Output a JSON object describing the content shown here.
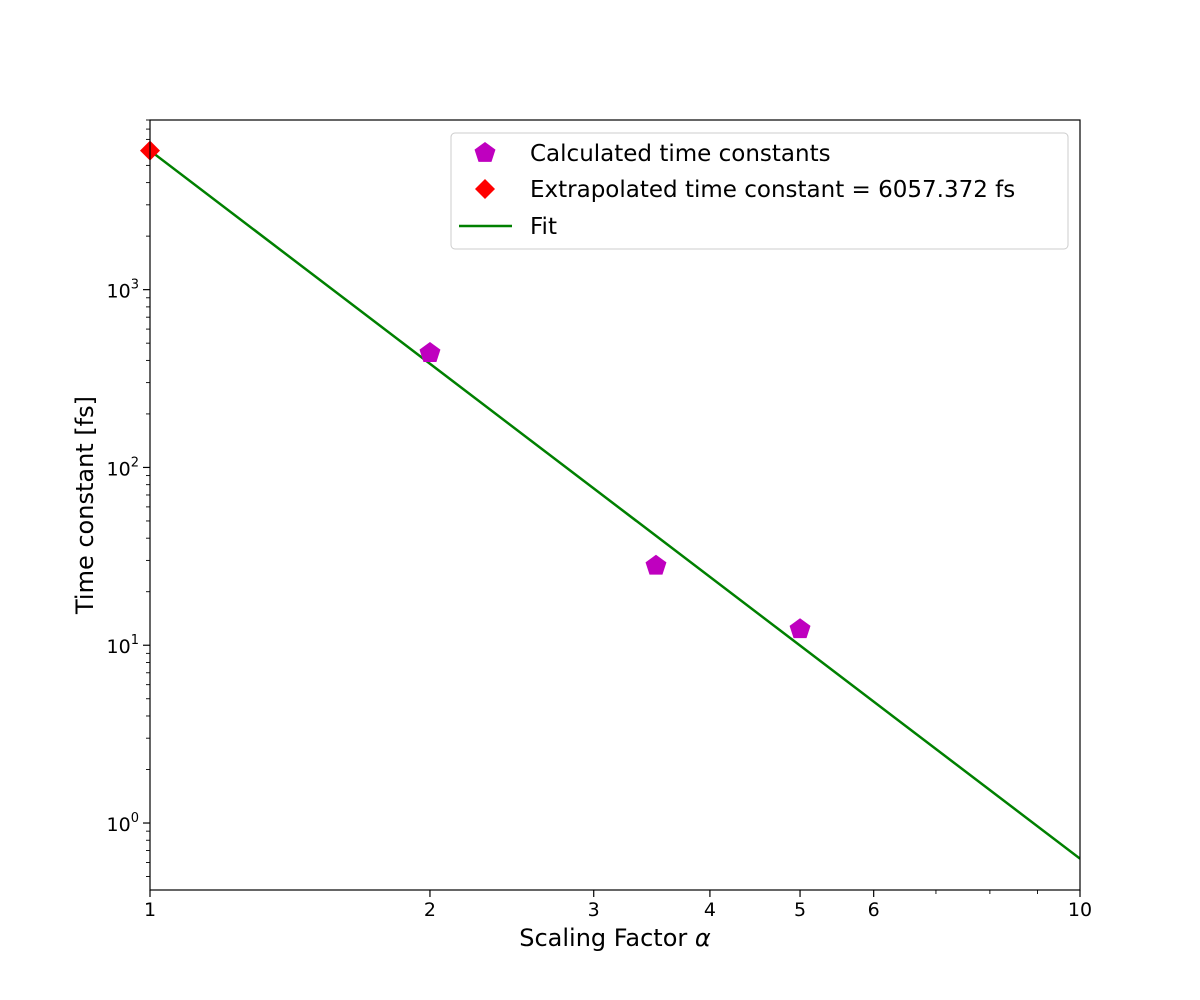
{
  "chart_data": {
    "type": "scatter",
    "xlabel": "Scaling Factor",
    "xlabel_symbol": "α",
    "ylabel": "Time constant [fs]",
    "x_scale": "log",
    "y_scale": "log",
    "xlim": [
      1,
      10
    ],
    "ylim": [
      0.42,
      9000
    ],
    "x_ticks": [
      {
        "value": 1,
        "label": "1"
      },
      {
        "value": 2,
        "label": "2"
      },
      {
        "value": 3,
        "label": "3"
      },
      {
        "value": 4,
        "label": "4"
      },
      {
        "value": 5,
        "label": "5"
      },
      {
        "value": 6,
        "label": "6"
      },
      {
        "value": 10,
        "label": "10"
      }
    ],
    "y_ticks": [
      {
        "value": 1,
        "base": "10",
        "exp": "0"
      },
      {
        "value": 10,
        "base": "10",
        "exp": "1"
      },
      {
        "value": 100,
        "base": "10",
        "exp": "2"
      },
      {
        "value": 1000,
        "base": "10",
        "exp": "3"
      }
    ],
    "grid": false,
    "legend_position": "top-right",
    "series": [
      {
        "name": "Calculated time constants",
        "kind": "scatter",
        "marker": "pentagon",
        "color": "#bf00bf",
        "x": [
          2,
          3.5,
          5
        ],
        "y": [
          440,
          28,
          12.3
        ]
      },
      {
        "name": "Extrapolated time constant = 6057.372 fs",
        "kind": "scatter",
        "marker": "diamond",
        "color": "#ff0000",
        "x": [
          1
        ],
        "y": [
          6057.372
        ]
      },
      {
        "name": "Fit",
        "kind": "line",
        "color": "#008000",
        "x": [
          1,
          10
        ],
        "y": [
          6057.372,
          0.63
        ]
      }
    ]
  }
}
